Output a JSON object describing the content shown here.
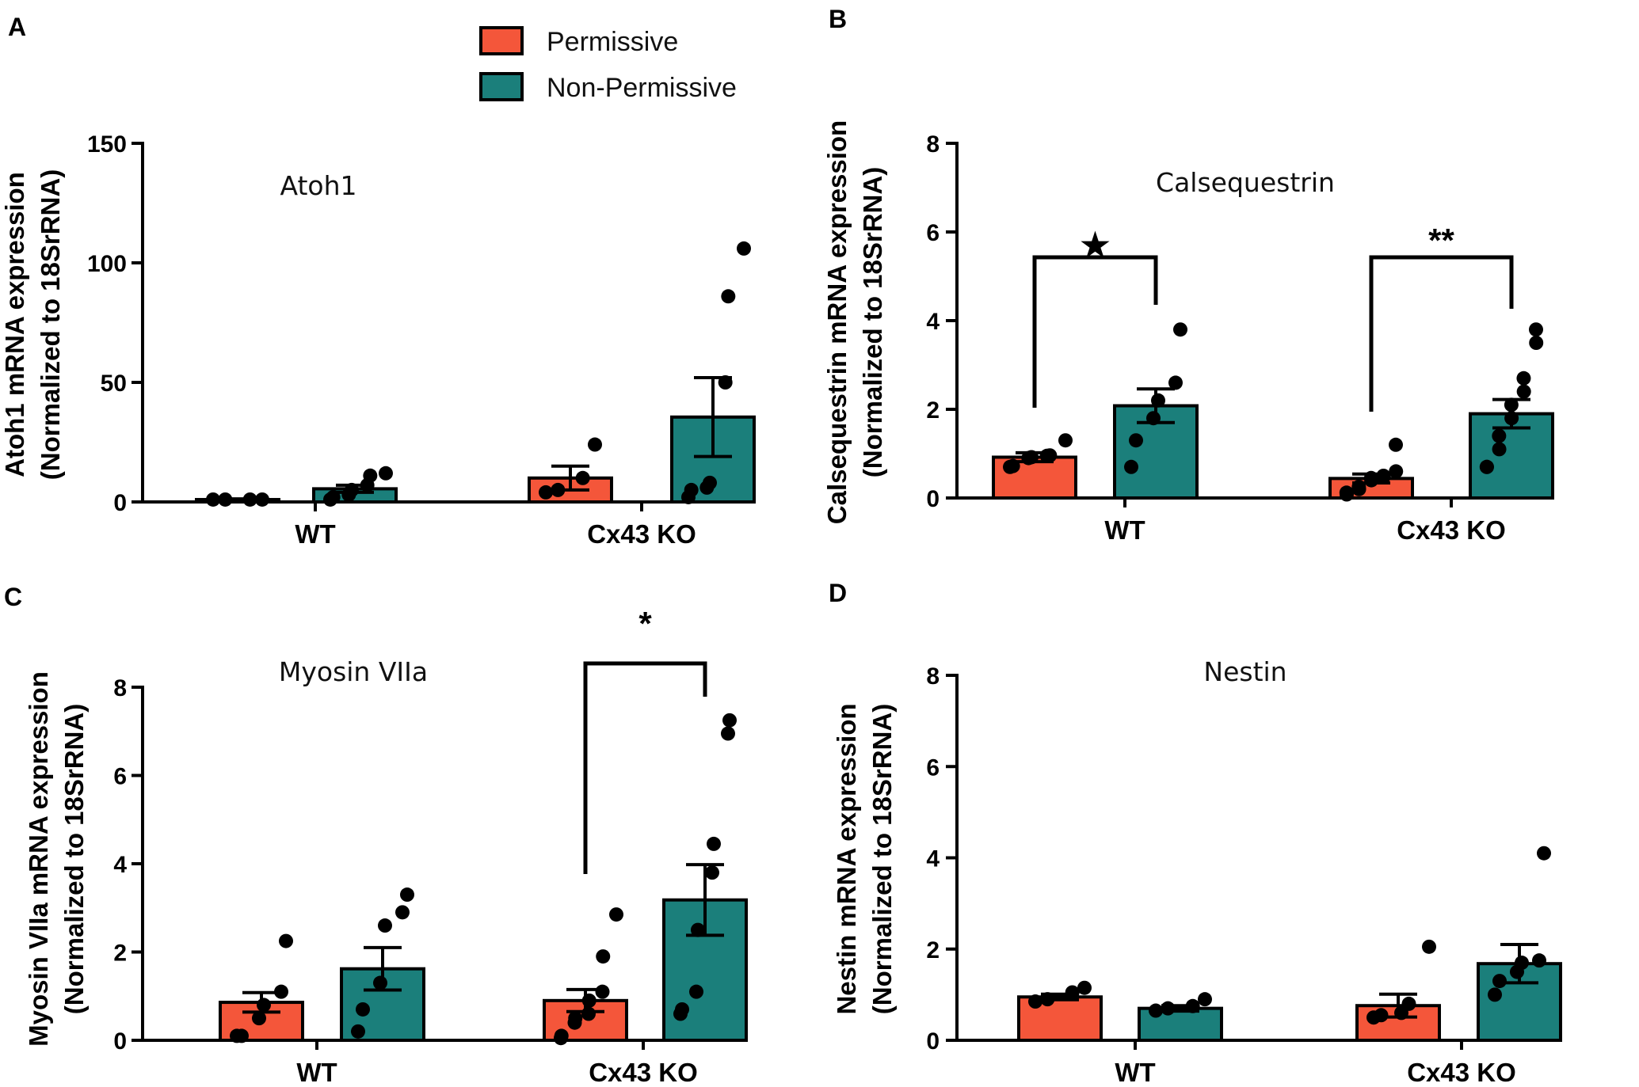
{
  "legend": {
    "entries": [
      {
        "name": "Permissive",
        "color": "#f4563a"
      },
      {
        "name": "Non-Permissive",
        "color": "#1b7f7b"
      }
    ]
  },
  "chart_data": [
    {
      "type": "bar",
      "panel": "A",
      "title": "Atoh1",
      "ylabel_line1": "Atoh1 mRNA expression",
      "ylabel_line2": "(Normalized to 18SrRNA)",
      "ylim": [
        0,
        150
      ],
      "yticks": [
        0,
        50,
        100,
        150
      ],
      "categories": [
        "WT",
        "Cx43 KO"
      ],
      "series": [
        {
          "name": "Permissive",
          "values": [
            1,
            10
          ],
          "sem": [
            0.3,
            5
          ],
          "points": [
            [
              1,
              1,
              1,
              1
            ],
            [
              4,
              5,
              10,
              24
            ]
          ]
        },
        {
          "name": "Non-Permissive",
          "values": [
            5.5,
            35.5
          ],
          "sem": [
            1.5,
            16.5
          ],
          "points": [
            [
              1,
              2,
              3,
              5,
              7,
              11,
              12
            ],
            [
              2,
              5,
              6,
              8,
              50,
              86,
              106
            ]
          ]
        }
      ],
      "significance": []
    },
    {
      "type": "bar",
      "panel": "B",
      "title": "Calsequestrin",
      "ylabel_line1": "Calsequestrin mRNA expression",
      "ylabel_line2": "(Normalized to 18SrRNA)",
      "ylim": [
        0,
        8
      ],
      "yticks": [
        0,
        2,
        4,
        6,
        8
      ],
      "categories": [
        "WT",
        "Cx43 KO"
      ],
      "series": [
        {
          "name": "Permissive",
          "values": [
            0.92,
            0.44
          ],
          "sem": [
            0.1,
            0.1
          ],
          "points": [
            [
              0.7,
              0.72,
              0.9,
              0.92,
              0.95,
              0.96,
              1.3
            ],
            [
              0.08,
              0.12,
              0.2,
              0.25,
              0.4,
              0.45,
              0.48,
              0.5,
              0.6,
              1.2
            ]
          ]
        },
        {
          "name": "Non-Permissive",
          "values": [
            2.08,
            1.9
          ],
          "sem": [
            0.38,
            0.32
          ],
          "points": [
            [
              0.7,
              1.3,
              1.8,
              2.2,
              2.6,
              3.8
            ],
            [
              0.7,
              0.7,
              1.1,
              1.4,
              1.8,
              2.1,
              2.4,
              2.7,
              3.5,
              3.8
            ]
          ]
        }
      ],
      "significance": [
        {
          "between": [
            "WT Permissive",
            "WT Non-Permissive"
          ],
          "label": "★"
        },
        {
          "between": [
            "Cx43 KO Permissive",
            "Cx43 KO Non-Permissive"
          ],
          "label": "**"
        }
      ]
    },
    {
      "type": "bar",
      "panel": "C",
      "title": "Myosin VIIa",
      "ylabel_line1": "Myosin VIIa mRNA expression",
      "ylabel_line2": "(Normalized to 18SrRNA)",
      "ylim": [
        0,
        8
      ],
      "yticks": [
        0,
        2,
        4,
        6,
        8
      ],
      "categories": [
        "WT",
        "Cx43 KO"
      ],
      "series": [
        {
          "name": "Permissive",
          "values": [
            0.86,
            0.9
          ],
          "sem": [
            0.22,
            0.25
          ],
          "points": [
            [
              0.1,
              0.1,
              0.5,
              0.8,
              1.1,
              2.25
            ],
            [
              0.05,
              0.1,
              0.4,
              0.5,
              0.6,
              0.9,
              1.1,
              1.9,
              2.85
            ]
          ]
        },
        {
          "name": "Non-Permissive",
          "values": [
            1.62,
            3.18
          ],
          "sem": [
            0.48,
            0.8
          ],
          "points": [
            [
              0.2,
              0.7,
              1.3,
              2.6,
              2.9,
              3.3
            ],
            [
              0.6,
              0.7,
              1.1,
              2.5,
              3.8,
              4.45,
              6.95,
              7.25
            ]
          ]
        }
      ],
      "significance": [
        {
          "between": [
            "Cx43 KO Permissive",
            "Cx43 KO Non-Permissive"
          ],
          "label": "*"
        }
      ]
    },
    {
      "type": "bar",
      "panel": "D",
      "title": "Nestin",
      "ylabel_line1": "Nestin mRNA expression",
      "ylabel_line2": "(Normalized to 18SrRNA)",
      "ylim": [
        0,
        8
      ],
      "yticks": [
        0,
        2,
        4,
        6,
        8
      ],
      "categories": [
        "WT",
        "Cx43 KO"
      ],
      "series": [
        {
          "name": "Permissive",
          "values": [
            0.95,
            0.76
          ],
          "sem": [
            0.06,
            0.25
          ],
          "points": [
            [
              0.85,
              0.9,
              1.05,
              1.15
            ],
            [
              0.5,
              0.55,
              0.6,
              0.8,
              2.05
            ]
          ]
        },
        {
          "name": "Non-Permissive",
          "values": [
            0.7,
            1.68
          ],
          "sem": [
            0.06,
            0.42
          ],
          "points": [
            [
              0.65,
              0.7,
              0.75,
              0.9
            ],
            [
              1.0,
              1.3,
              1.5,
              1.7,
              1.75,
              4.1
            ]
          ]
        }
      ],
      "significance": []
    }
  ]
}
